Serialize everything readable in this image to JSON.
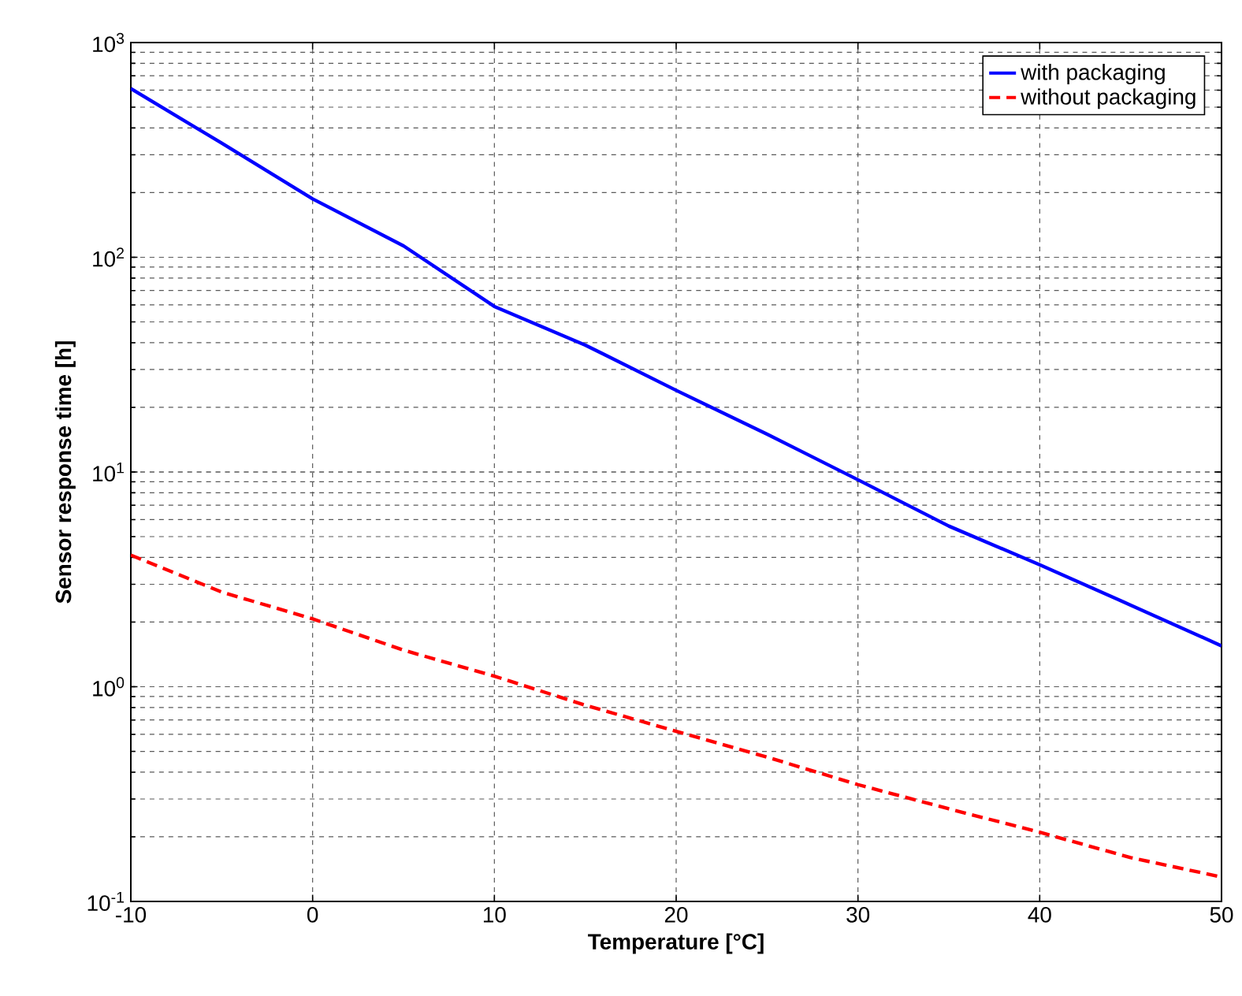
{
  "chart_data": {
    "type": "line",
    "xlabel": "Temperature [°C]",
    "ylabel": "Sensor response time [h]",
    "x": [
      -10,
      -5,
      0,
      5,
      10,
      15,
      20,
      25,
      30,
      35,
      40,
      45,
      50
    ],
    "series": [
      {
        "name": "with packaging",
        "color": "#0000ff",
        "line_style": "solid",
        "values": [
          610,
          340,
          187,
          113,
          59,
          39,
          24,
          15,
          9.2,
          5.6,
          3.7,
          2.4,
          1.55
        ]
      },
      {
        "name": "without packaging",
        "color": "#ff0000",
        "line_style": "dashed",
        "values": [
          4.1,
          2.76,
          2.07,
          1.48,
          1.12,
          0.82,
          0.62,
          0.47,
          0.35,
          0.27,
          0.21,
          0.16,
          0.13
        ]
      }
    ],
    "xlim": [
      -10,
      50
    ],
    "xticks": [
      -10,
      0,
      10,
      20,
      30,
      40,
      50
    ],
    "ylim": [
      0.1,
      1000
    ],
    "yticks": [
      {
        "value": 0.1,
        "label": "10$^{-1}$"
      },
      {
        "value": 1,
        "label": "10$^{0}$"
      },
      {
        "value": 10,
        "label": "10$^{1}$"
      },
      {
        "value": 100,
        "label": "10$^{2}$"
      },
      {
        "value": 1000,
        "label": "10$^{3}$"
      }
    ],
    "log": "y",
    "grid": true,
    "legend": "top right",
    "marker": "none"
  }
}
